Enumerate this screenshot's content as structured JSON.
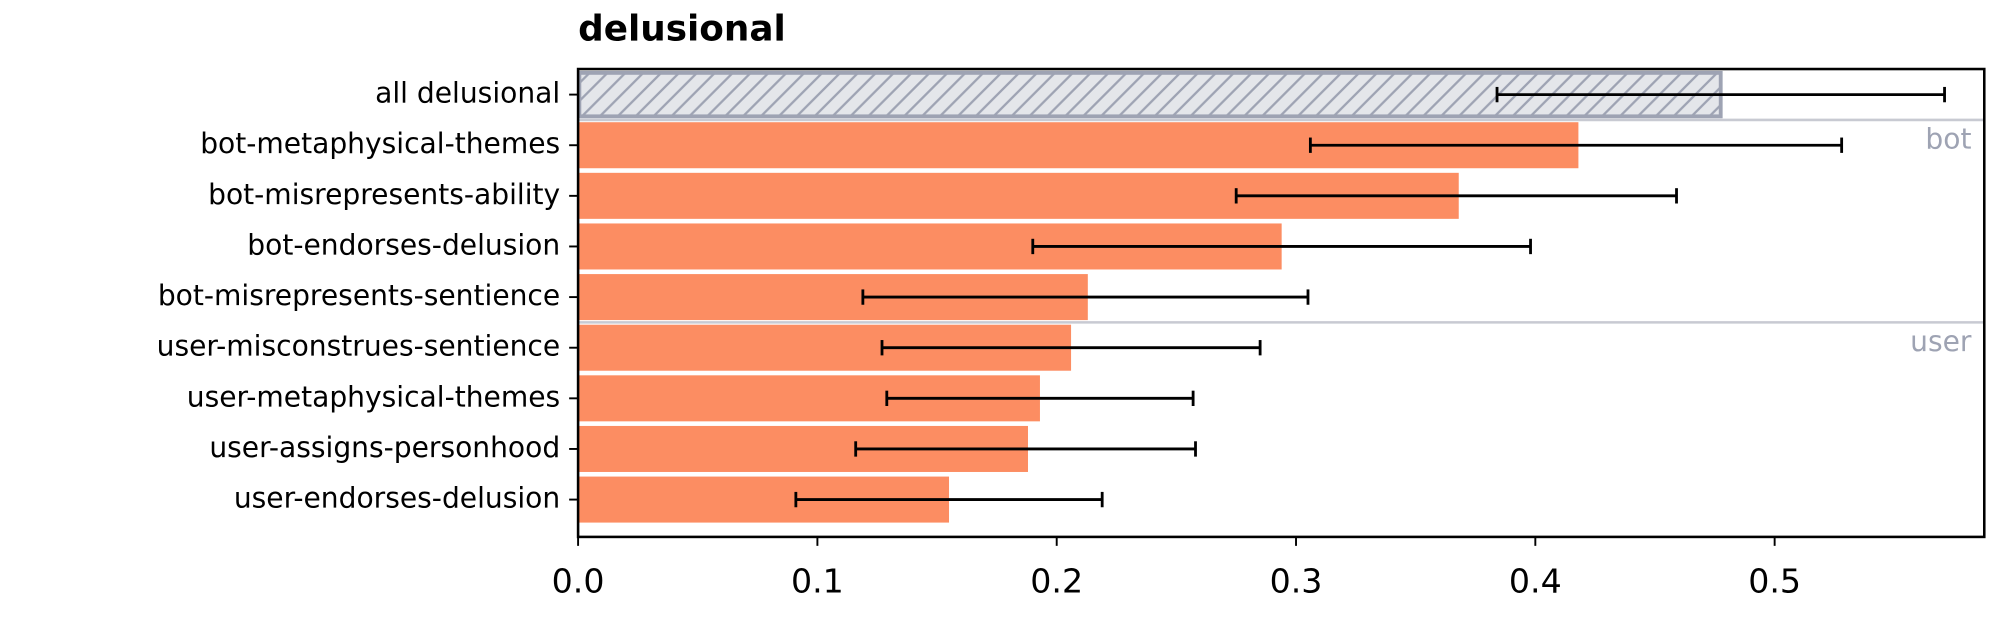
{
  "chart_data": {
    "type": "barh",
    "title": "delusional",
    "categories": [
      "all delusional",
      "bot-metaphysical-themes",
      "bot-misrepresents-ability",
      "bot-endorses-delusion",
      "bot-misrepresents-sentience",
      "user-misconstrues-sentience",
      "user-metaphysical-themes",
      "user-assigns-personhood",
      "user-endorses-delusion"
    ],
    "values": [
      0.478,
      0.418,
      0.368,
      0.294,
      0.213,
      0.206,
      0.193,
      0.188,
      0.155
    ],
    "ci_low": [
      0.384,
      0.306,
      0.275,
      0.19,
      0.119,
      0.127,
      0.129,
      0.116,
      0.091
    ],
    "ci_high": [
      0.571,
      0.528,
      0.459,
      0.398,
      0.305,
      0.285,
      0.257,
      0.258,
      0.219
    ],
    "colors": [
      "#e4e6ea",
      "#fc8d62",
      "#fc8d62",
      "#fc8d62",
      "#fc8d62",
      "#fc8d62",
      "#fc8d62",
      "#fc8d62",
      "#fc8d62"
    ],
    "hatch_color": "#9ea3b3",
    "annotations": [
      "bot",
      "user"
    ],
    "annotation_color": "#9ea3b3",
    "xlim": [
      0,
      0.5876
    ],
    "xticks": [
      {
        "value": 0,
        "label": "0.0"
      },
      0.1,
      0.2,
      0.3,
      0.4,
      0.5
    ]
  }
}
